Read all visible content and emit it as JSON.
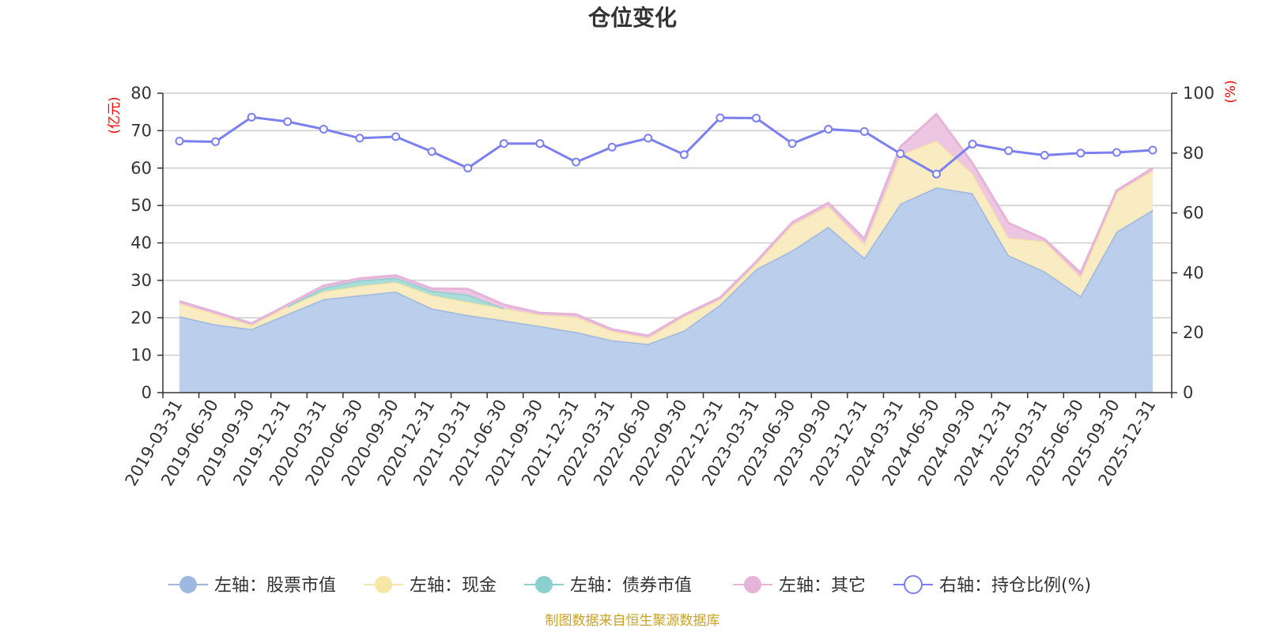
{
  "chart_data": {
    "type": "area",
    "title": "仓位变化",
    "left_axis_unit": "(亿元)",
    "right_axis_unit": "(%)",
    "ylim_left": [
      0,
      80
    ],
    "yticks_left": [
      0,
      10,
      20,
      30,
      40,
      50,
      60,
      70,
      80
    ],
    "ylim_right": [
      0,
      100
    ],
    "yticks_right": [
      0,
      20,
      40,
      60,
      80,
      100
    ],
    "categories": [
      "2019-03-31",
      "2019-06-30",
      "2019-09-30",
      "2019-12-31",
      "2020-03-31",
      "2020-06-30",
      "2020-09-30",
      "2020-12-31",
      "2021-03-31",
      "2021-06-30",
      "2021-09-30",
      "2021-12-31",
      "2022-03-31",
      "2022-06-30",
      "2022-09-30",
      "2022-12-31",
      "2023-03-31",
      "2023-06-30",
      "2023-09-30",
      "2023-12-31",
      "2024-03-31",
      "2024-06-30",
      "2024-09-30",
      "2024-12-31",
      "2025-03-31",
      "2025-06-30",
      "2025-09-30",
      "2025-12-31"
    ],
    "stacked_series": [
      {
        "name": "左轴：股票市值",
        "color": "#9fb8e0",
        "fill": "#b7cceb",
        "values": [
          20.4,
          18.2,
          17.0,
          21.0,
          25.0,
          26.0,
          27.0,
          22.5,
          20.7,
          19.3,
          17.8,
          16.2,
          14.0,
          13.0,
          16.6,
          23.5,
          33.0,
          38.0,
          44.3,
          36.0,
          50.5,
          54.8,
          53.3,
          36.7,
          32.4,
          25.8,
          43.0,
          48.8
        ]
      },
      {
        "name": "左轴：现金",
        "color": "#f7e7a6",
        "fill": "#f9ebc0",
        "values": [
          3.4,
          2.8,
          1.0,
          2.0,
          2.0,
          2.5,
          2.5,
          3.5,
          3.5,
          3.2,
          3.0,
          4.0,
          2.4,
          1.6,
          3.7,
          1.4,
          1.4,
          6.8,
          5.5,
          3.6,
          13.0,
          12.5,
          5.2,
          4.6,
          8.0,
          5.0,
          10.5,
          10.5
        ]
      },
      {
        "name": "左轴：债券市值",
        "color": "#8ccfd0",
        "fill": "#a8dad6",
        "values": [
          0,
          0,
          0,
          0,
          1.0,
          1.5,
          1.2,
          1.2,
          2.0,
          0,
          0,
          0,
          0,
          0,
          0,
          0,
          0,
          0,
          0,
          0,
          0,
          0,
          0,
          0,
          0,
          0,
          0,
          0
        ]
      },
      {
        "name": "左轴：其它",
        "color": "#e6b3d9",
        "fill": "#ecc4e0",
        "values": [
          0.6,
          0.5,
          0.5,
          0.5,
          0.6,
          0.5,
          0.6,
          0.6,
          1.5,
          1.0,
          0.5,
          0.7,
          0.5,
          0.6,
          0.5,
          0.5,
          0.6,
          0.7,
          0.9,
          1.5,
          2.2,
          7.1,
          2.8,
          4.0,
          0.6,
          1.2,
          0.5,
          0.7
        ]
      }
    ],
    "line_series": {
      "name": "右轴：持仓比例(%)",
      "color": "#7b7ff0",
      "values": [
        84,
        83.8,
        92,
        90.5,
        88,
        85,
        85.5,
        80.5,
        75,
        83.2,
        83.2,
        77,
        82,
        85,
        79.5,
        91.8,
        91.7,
        83.2,
        88,
        87.2,
        79.8,
        73,
        83,
        80.8,
        79.3,
        80,
        80.2,
        81
      ]
    },
    "legend": [
      "左轴：股票市值",
      "左轴：现金",
      "左轴：债券市值",
      "左轴：其它",
      "右轴：持仓比例(%)"
    ],
    "legend_position": "bottom",
    "grid": true
  },
  "source_text": "制图数据来自恒生聚源数据库"
}
